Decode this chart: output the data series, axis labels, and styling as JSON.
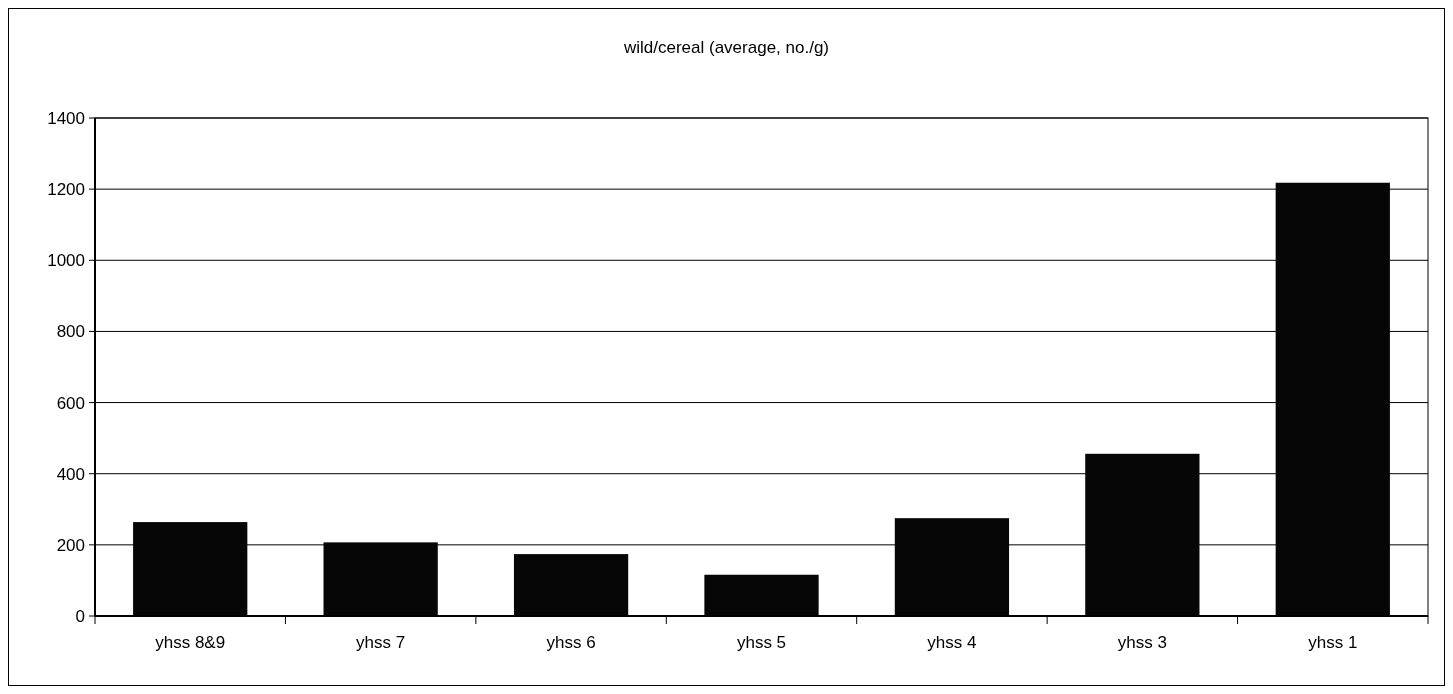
{
  "chart_data": {
    "type": "bar",
    "title": "wild/cereal (average, no./g)",
    "categories": [
      "yhss 8&9",
      "yhss 7",
      "yhss 6",
      "yhss 5",
      "yhss 4",
      "yhss 3",
      "yhss 1"
    ],
    "values": [
      264,
      207,
      174,
      116,
      275,
      456,
      1218
    ],
    "color": "#060606",
    "ylim": [
      0,
      1400
    ],
    "yticks": [
      0,
      200,
      400,
      600,
      800,
      1000,
      1200,
      1400
    ],
    "grid": "y"
  }
}
